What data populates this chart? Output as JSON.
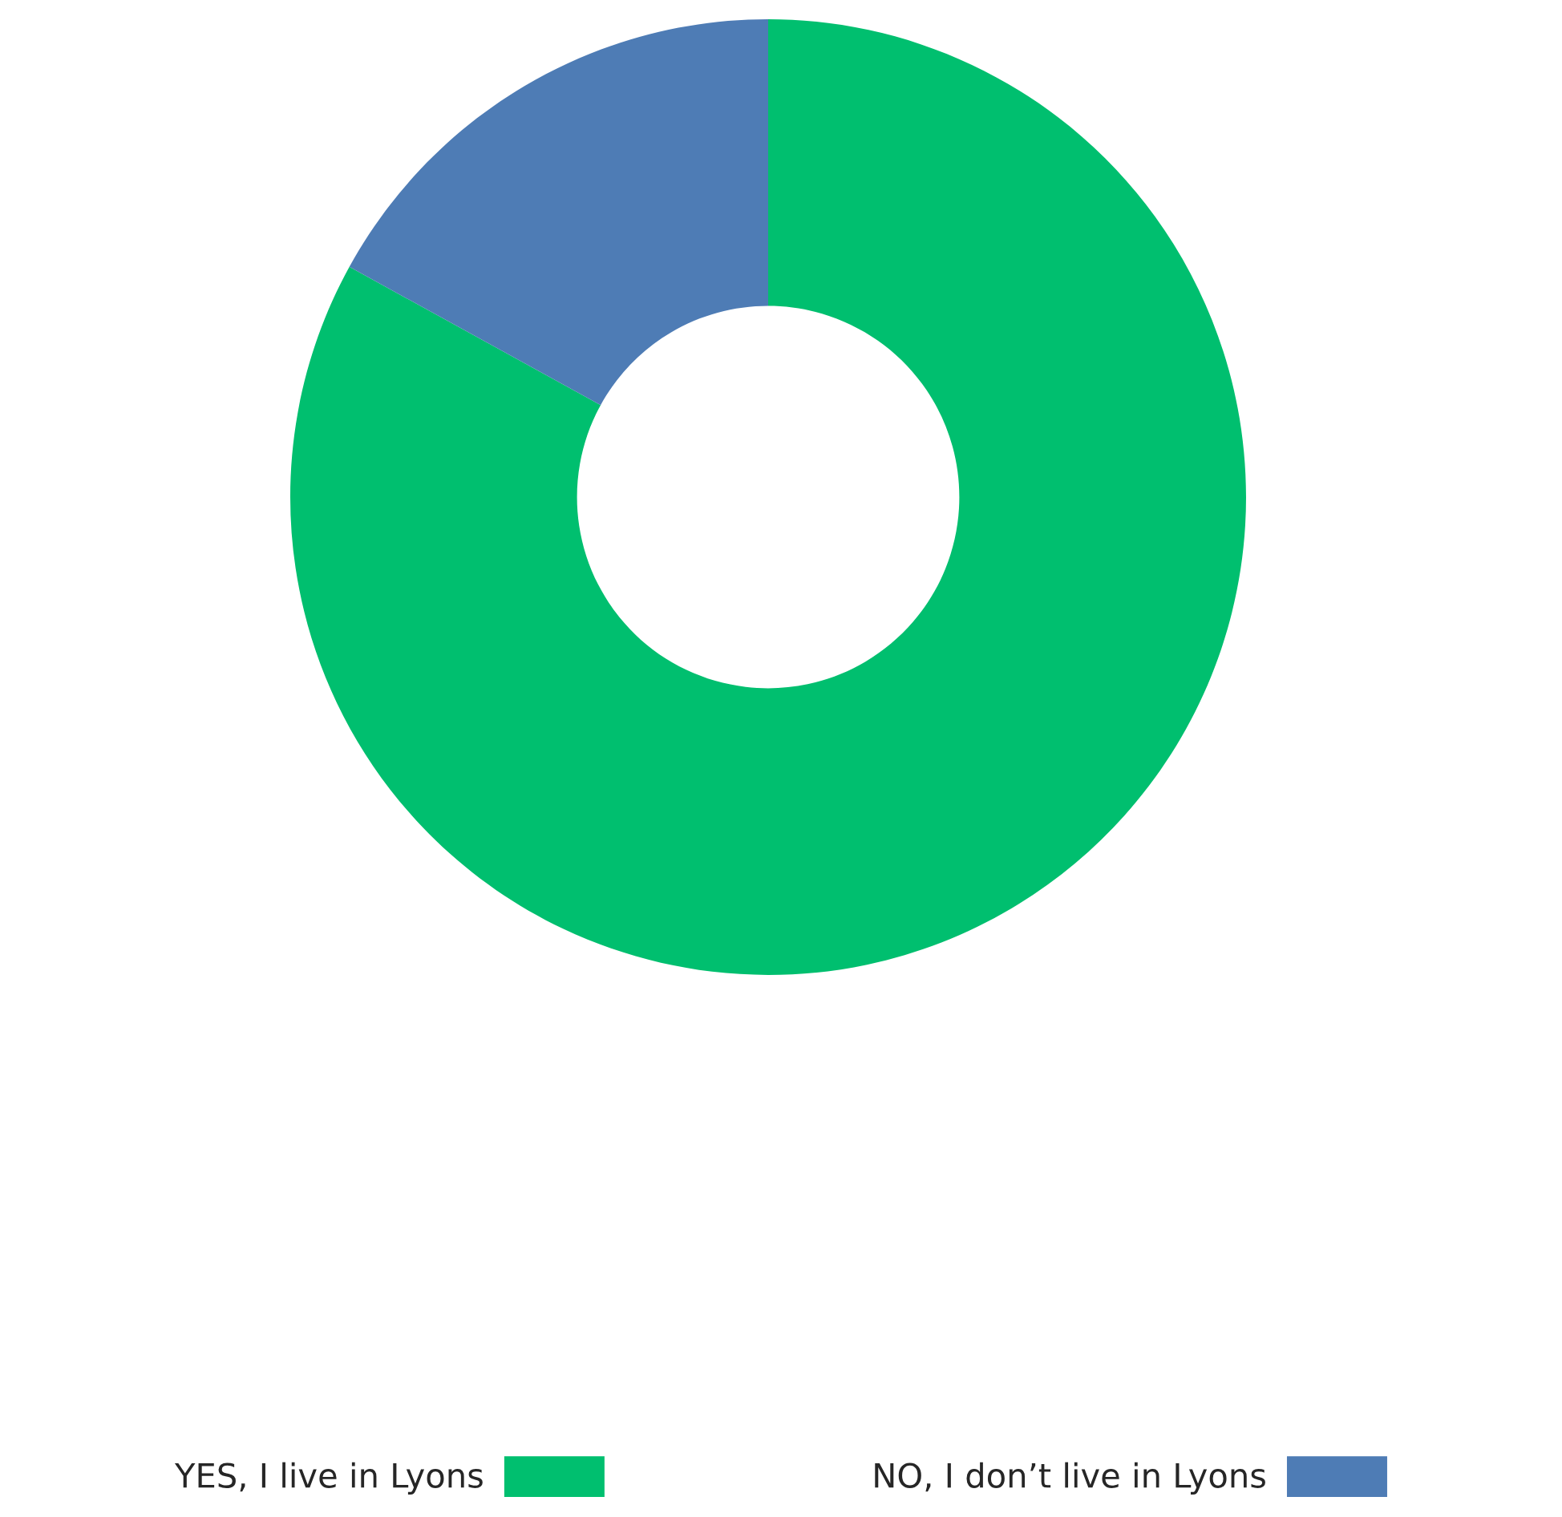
{
  "chart_data": {
    "type": "donut",
    "categories": [
      "YES, I live in Lyons",
      "NO, I don’t live in Lyons"
    ],
    "values": [
      83,
      17
    ],
    "colors": [
      "#00bf6f",
      "#4e7cb5"
    ],
    "legend": "bottom"
  }
}
